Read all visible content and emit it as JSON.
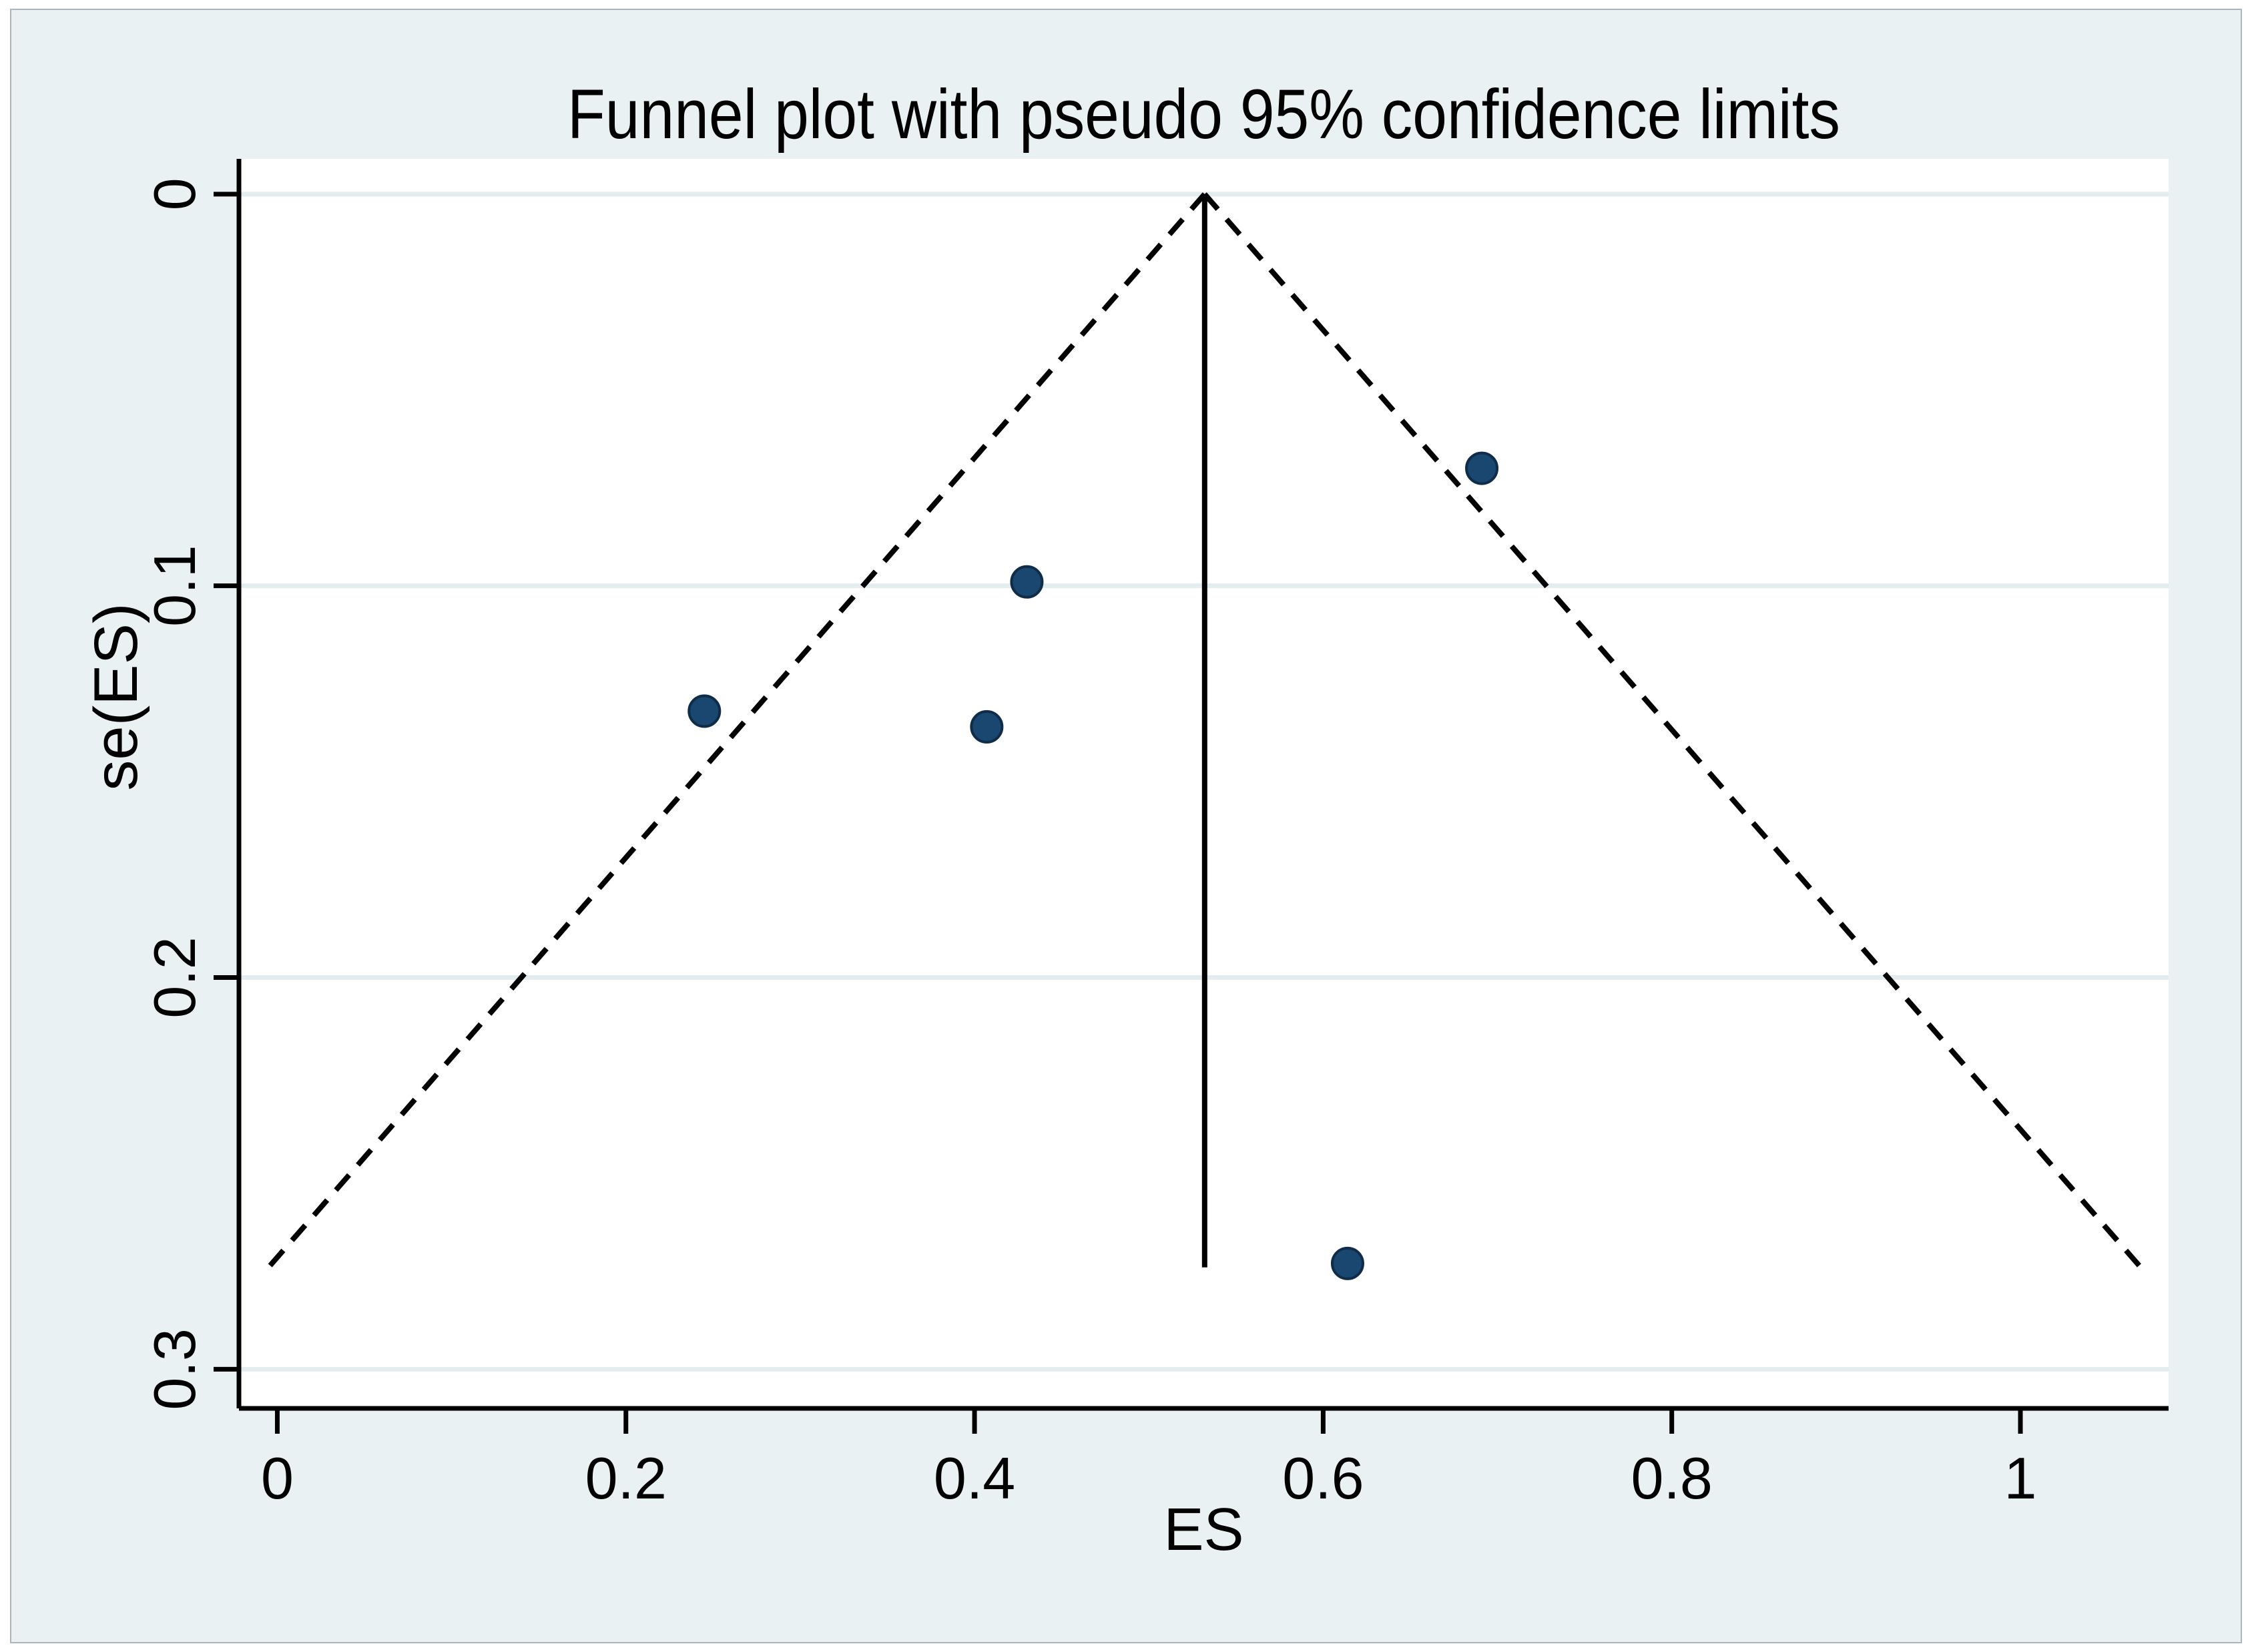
{
  "figure": {
    "background_color": "#eaf1f3",
    "plot_background_color": "#ffffff",
    "frame_color": "#aab6bb",
    "grid_color": "#e3edf0",
    "axis_color": "#000000",
    "marker_color": "#1a476f",
    "marker_edge_color": "#0f2c49",
    "line_color": "#000000"
  },
  "chart_data": {
    "type": "scatter",
    "title": "Funnel plot with pseudo 95% confidence limits",
    "xlabel": "ES",
    "ylabel": "se(ES)",
    "x_ticks": [
      0,
      0.2,
      0.4,
      0.6,
      0.8,
      1
    ],
    "x_tick_labels": [
      "0",
      "0.2",
      "0.4",
      "0.6",
      "0.8",
      "1"
    ],
    "y_ticks": [
      0,
      0.1,
      0.2,
      0.3
    ],
    "y_tick_labels": [
      "0",
      "0.1",
      "0.2",
      "0.3"
    ],
    "xlim": [
      -0.022,
      1.085
    ],
    "ylim": [
      -0.009,
      0.31
    ],
    "y_axis_inverted": true,
    "grid": "horizontal",
    "legend": "none",
    "points": [
      {
        "es": 0.691,
        "se": 0.07
      },
      {
        "es": 0.43,
        "se": 0.099
      },
      {
        "es": 0.245,
        "se": 0.132
      },
      {
        "es": 0.407,
        "se": 0.136
      },
      {
        "es": 0.614,
        "se": 0.273
      }
    ],
    "pooled_es": 0.532,
    "funnel": {
      "center_es": 0.532,
      "z_value": 1.96,
      "se_top": 0,
      "se_bottom": 0.274,
      "line_style": "dashed"
    }
  }
}
